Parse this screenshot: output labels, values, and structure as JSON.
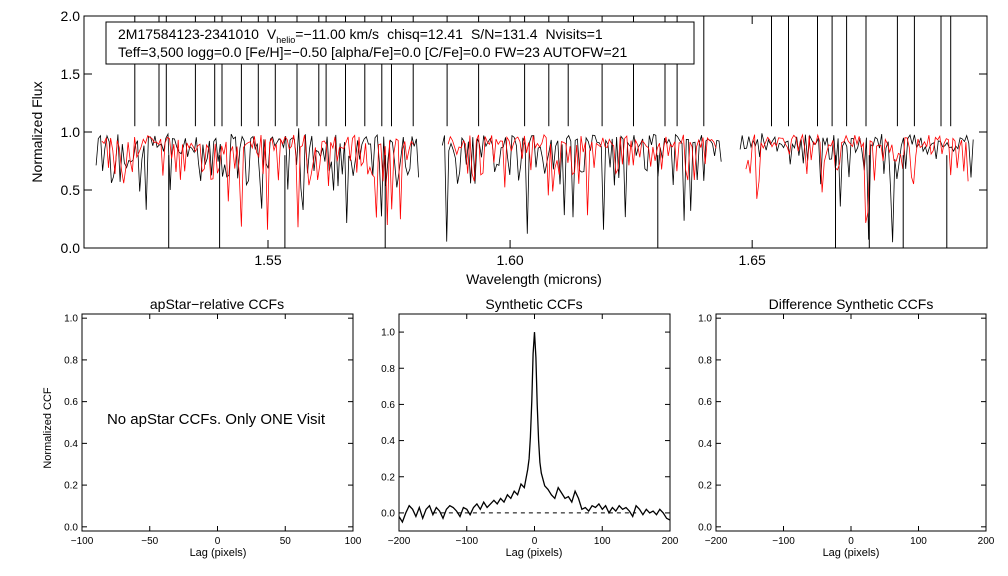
{
  "chart_data": [
    {
      "type": "line",
      "panel": "spectrum",
      "title": "",
      "info_line1": {
        "object": "2M17584123-2341010",
        "v_label": "V",
        "v_sub": "helio",
        "v_value": "=−11.00 km/s",
        "chisq": "chisq=12.41",
        "sn": "S/N=131.4",
        "nvisits": "Nvisits=1"
      },
      "info_line2": "Teff=3,500 logg=0.0 [Fe/H]=−0.50 [alpha/Fe]=0.0 [C/Fe]=0.0 FW=23 AUTOFW=21",
      "xlabel": "Wavelength (microns)",
      "ylabel": "Normalized Flux",
      "xlim": [
        1.512,
        1.6985
      ],
      "ylim": [
        0.0,
        2.0
      ],
      "xticks": [
        1.55,
        1.6,
        1.65
      ],
      "xtick_labels": [
        "1.55",
        "1.60",
        "1.65"
      ],
      "yticks": [
        0.0,
        0.5,
        1.0,
        1.5,
        2.0
      ],
      "ytick_labels": [
        "0.0",
        "0.5",
        "1.0",
        "1.5",
        "2.0"
      ],
      "detector_ranges": [
        [
          1.5145,
          1.5813
        ],
        [
          1.586,
          1.644
        ],
        [
          1.6475,
          1.696
        ]
      ],
      "continuum_level": 0.92,
      "series": [
        {
          "name": "observed spectrum",
          "color": "#000000"
        },
        {
          "name": "synthetic model",
          "color": "#ff0000"
        }
      ],
      "spike_lines_x": [
        1.5225,
        1.5275,
        1.529,
        1.535,
        1.539,
        1.5405,
        1.5445,
        1.548,
        1.5515,
        1.556,
        1.5605,
        1.562,
        1.566,
        1.57,
        1.5735,
        1.5755,
        1.58,
        1.587,
        1.5935,
        1.603,
        1.608,
        1.612,
        1.619,
        1.6255,
        1.632,
        1.6345,
        1.64,
        1.654,
        1.6575,
        1.6635,
        1.6665,
        1.6695,
        1.6735,
        1.68,
        1.6835,
        1.689,
        1.691
      ],
      "deep_lines_x": [
        1.5295,
        1.54,
        1.5535,
        1.5742,
        1.6305,
        1.6672,
        1.6742,
        1.6812,
        1.6902
      ]
    },
    {
      "type": "line",
      "panel": "apstar-ccf",
      "title": "apStar−relative CCFs",
      "xlabel": "Lag (pixels)",
      "ylabel": "Normalized CCF",
      "xlim": [
        -100,
        100
      ],
      "ylim": [
        -0.02,
        1.02
      ],
      "xticks": [
        -100,
        -50,
        0,
        50,
        100
      ],
      "xtick_labels": [
        "−100",
        "−50",
        "0",
        "50",
        "100"
      ],
      "yticks": [
        0.0,
        0.2,
        0.4,
        0.6,
        0.8,
        1.0
      ],
      "ytick_labels": [
        "0.0",
        "0.2",
        "0.4",
        "0.6",
        "0.8",
        "1.0"
      ],
      "message": "No apStar CCFs.  Only ONE Visit"
    },
    {
      "type": "line",
      "panel": "synthetic-ccf",
      "title": "Synthetic CCFs",
      "xlabel": "Lag (pixels)",
      "ylabel": "",
      "xlim": [
        -200,
        200
      ],
      "ylim": [
        -0.1,
        1.1
      ],
      "xticks": [
        -200,
        -100,
        0,
        100,
        200
      ],
      "xtick_labels": [
        "−200",
        "−100",
        "0",
        "100",
        "200"
      ],
      "yticks": [
        0.0,
        0.2,
        0.4,
        0.6,
        0.8,
        1.0
      ],
      "ytick_labels": [
        "0.0",
        "0.2",
        "0.4",
        "0.6",
        "0.8",
        "1.0"
      ],
      "baseline": 0.0,
      "baseline_range": [
        -150,
        150
      ],
      "series": [
        {
          "name": "synthetic CCF",
          "x": [
            -200,
            -195,
            -190,
            -185,
            -180,
            -175,
            -170,
            -165,
            -160,
            -155,
            -150,
            -145,
            -140,
            -135,
            -130,
            -125,
            -120,
            -115,
            -110,
            -105,
            -100,
            -95,
            -90,
            -85,
            -80,
            -75,
            -70,
            -65,
            -60,
            -55,
            -50,
            -45,
            -40,
            -35,
            -30,
            -25,
            -20,
            -15,
            -10,
            -8,
            -6,
            -4,
            -2,
            0,
            2,
            4,
            6,
            8,
            10,
            15,
            20,
            25,
            30,
            35,
            40,
            45,
            50,
            55,
            60,
            65,
            70,
            75,
            80,
            85,
            90,
            95,
            100,
            105,
            110,
            115,
            120,
            125,
            130,
            135,
            140,
            145,
            150,
            155,
            160,
            165,
            170,
            175,
            180,
            185,
            190,
            195,
            200
          ],
          "y": [
            -0.02,
            -0.05,
            0.0,
            0.04,
            0.02,
            -0.02,
            0.03,
            -0.03,
            0.02,
            0.04,
            -0.01,
            0.03,
            0.01,
            -0.03,
            0.02,
            0.04,
            0.03,
            0.01,
            -0.02,
            0.03,
            0.02,
            -0.01,
            0.03,
            0.05,
            0.02,
            0.06,
            0.03,
            0.05,
            0.07,
            0.05,
            0.08,
            0.06,
            0.1,
            0.08,
            0.12,
            0.1,
            0.16,
            0.14,
            0.24,
            0.3,
            0.42,
            0.62,
            0.88,
            1.0,
            0.86,
            0.6,
            0.4,
            0.28,
            0.22,
            0.15,
            0.13,
            0.1,
            0.08,
            0.14,
            0.11,
            0.08,
            0.09,
            0.06,
            0.12,
            0.08,
            0.02,
            0.03,
            0.01,
            0.04,
            0.03,
            0.05,
            0.02,
            0.04,
            0.0,
            0.03,
            0.01,
            0.04,
            0.02,
            0.03,
            0.01,
            -0.02,
            0.04,
            0.02,
            -0.01,
            0.02,
            0.0,
            0.01,
            -0.01,
            0.02,
            0.0,
            -0.03,
            -0.04
          ]
        }
      ]
    },
    {
      "type": "line",
      "panel": "difference-ccf",
      "title": "Difference Synthetic CCFs",
      "xlabel": "Lag (pixels)",
      "ylabel": "",
      "xlim": [
        -200,
        200
      ],
      "ylim": [
        -0.02,
        1.02
      ],
      "xticks": [
        -200,
        -100,
        0,
        100,
        200
      ],
      "xtick_labels": [
        "−200",
        "−100",
        "0",
        "100",
        "200"
      ],
      "yticks": [
        0.0,
        0.2,
        0.4,
        0.6,
        0.8,
        1.0
      ],
      "ytick_labels": [
        "0.0",
        "0.2",
        "0.4",
        "0.6",
        "0.8",
        "1.0"
      ]
    }
  ]
}
